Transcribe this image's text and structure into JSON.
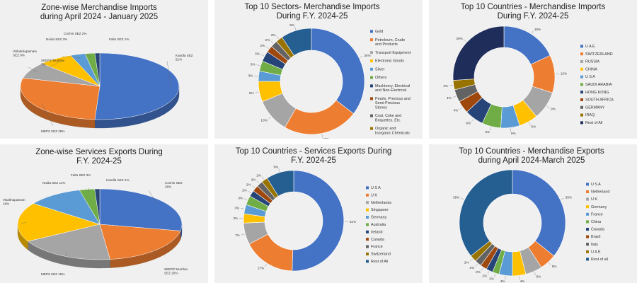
{
  "colors": {
    "palette": [
      "#4472c4",
      "#ed7d31",
      "#a5a5a5",
      "#ffc000",
      "#5b9bd5",
      "#70ad47",
      "#264478",
      "#9e480e",
      "#636363",
      "#997300",
      "#255e91"
    ],
    "panel_bg": "#f0f0f0",
    "rest_dark": "#1f2d5a"
  },
  "chart_data": [
    {
      "type": "pie",
      "title_lines": [
        "Zone-wise Merchandise Imports",
        "during April 2024 - January 2025"
      ],
      "categories": [
        "Kandla SEZ",
        "MEPZ SEZ",
        "Vishakhapatnam SEZ",
        "SEEPZ Mumbai",
        "Noida SEZ",
        "Cochin SEZ",
        "Falta SEZ"
      ],
      "values": [
        51,
        28,
        8,
        7,
        3,
        2,
        1
      ],
      "labels": [
        [
          "Kandla SEZ",
          "51%"
        ],
        [
          "MEPZ SEZ 28%"
        ],
        [
          "Vishakhapatnam",
          "SEZ 8%"
        ],
        [
          "SEEPZ Mumbai",
          "7%"
        ],
        [
          "Noida SEZ 3%"
        ],
        [
          "Cochin SEZ 2%"
        ],
        [
          "Falta SEZ 1%"
        ]
      ],
      "colors": [
        "#4472c4",
        "#ed7d31",
        "#a5a5a5",
        "#ffc000",
        "#5b9bd5",
        "#70ad47",
        "#264478"
      ],
      "style": "3d"
    },
    {
      "type": "pie",
      "title_lines": [
        "Top 10 Sectors- Merchandise Imports",
        "During F.Y. 2024-25"
      ],
      "categories": [
        "Gold",
        "Petroleum, Crude and Products",
        "Transport Equipment",
        "Electronic Goods",
        "Silver",
        "Others",
        "Machinery, Electrical and Non-Electrical",
        "Pearls, Precious and Semi-Precious Stones",
        "Coal, Coke and Briquettes, Etc.",
        "Organic and Inorganic Chemicals",
        "Rest of All"
      ],
      "legend_lines": [
        [
          "Gold"
        ],
        [
          "Petroleum, Crude",
          "and Products"
        ],
        [
          "Transport Equipment"
        ],
        [
          "Electronic Goods"
        ],
        [
          "Silver"
        ],
        [
          "Others"
        ],
        [
          "Machinery, Electrical",
          "and Non-Electrical"
        ],
        [
          "Pearls, Precious and",
          "Semi-Precious",
          "Stones"
        ],
        [
          "Coal, Coke and",
          "Briquettes, Etc."
        ],
        [
          "Organic and",
          "Inorganic Chemicals"
        ],
        [
          "Rest of All"
        ]
      ],
      "values": [
        34,
        22,
        10,
        6,
        3,
        3,
        3,
        2,
        2,
        2,
        9
      ],
      "labels": [
        "34%",
        "22%",
        "10%",
        "6%",
        "3%",
        "3%",
        "3%",
        "2%",
        "2%",
        "2%",
        "9%"
      ],
      "colors": [
        "#4472c4",
        "#ed7d31",
        "#a5a5a5",
        "#ffc000",
        "#5b9bd5",
        "#70ad47",
        "#264478",
        "#9e480e",
        "#636363",
        "#997300",
        "#255e91"
      ],
      "style": "donut"
    },
    {
      "type": "pie",
      "title_lines": [
        "Top 10 Countries - Merchandise Imports",
        "During F.Y. 2024-25"
      ],
      "categories": [
        "U A E",
        "SWITZERLAND",
        "RUSSIA",
        "CHINA",
        "U S A",
        "SAUDI ARABIA",
        "HONG KONG",
        "SOUTH AFRICA",
        "GERMANY",
        "IRAQ",
        "Rest of All"
      ],
      "values": [
        18,
        12,
        9,
        6,
        6,
        6,
        6,
        4,
        4,
        3,
        26
      ],
      "labels": [
        "18%",
        "12%",
        "9%",
        "6%",
        "6%",
        "6%",
        "6%",
        "4%",
        "4%",
        "3%",
        "26%"
      ],
      "colors": [
        "#4472c4",
        "#ed7d31",
        "#a5a5a5",
        "#ffc000",
        "#5b9bd5",
        "#70ad47",
        "#264478",
        "#9e480e",
        "#636363",
        "#997300",
        "#1f2d5a"
      ],
      "style": "donut"
    },
    {
      "type": "pie",
      "title_lines": [
        "Zone-wise Services Exports During",
        "F.Y. 2024-25"
      ],
      "categories": [
        "Cochin SEZ",
        "SEEPZ Mumbai SEZ",
        "MEPZ SEZ",
        "Visakhapatnam",
        "Noida SEZ",
        "Falta SEZ",
        "Kandla SEZ"
      ],
      "values": [
        28,
        20,
        19,
        18,
        11,
        3,
        1
      ],
      "labels": [
        [
          "Cochin SEZ",
          "28%"
        ],
        [
          "SEEPZ Mumbai",
          "SEZ 20%"
        ],
        [
          "MEPZ SEZ 19%"
        ],
        [
          "Visakhapatnam",
          "18%"
        ],
        [
          "Noida SEZ 11%"
        ],
        [
          "Falta SEZ 3%"
        ],
        [
          "Kandla SEZ 1%"
        ]
      ],
      "colors": [
        "#4472c4",
        "#ed7d31",
        "#a5a5a5",
        "#ffc000",
        "#5b9bd5",
        "#70ad47",
        "#264478"
      ],
      "style": "3d"
    },
    {
      "type": "pie",
      "title_lines": [
        "Top 10 Countries - Services Exports During",
        "F.Y. 2024-25"
      ],
      "categories": [
        "U S A",
        "U K",
        "Netherlands",
        "Singapore",
        "Germany",
        "Australia",
        "Ireland",
        "Canada",
        "France",
        "Switzerland",
        "Rest of All"
      ],
      "values": [
        51,
        17,
        7,
        3,
        3,
        3,
        2,
        2,
        2,
        2,
        9
      ],
      "labels": [
        "51%",
        "17%",
        "7%",
        "3%",
        "3%",
        "3%",
        "2%",
        "2%",
        "2%",
        "2%",
        "9%"
      ],
      "colors": [
        "#4472c4",
        "#ed7d31",
        "#a5a5a5",
        "#ffc000",
        "#5b9bd5",
        "#70ad47",
        "#264478",
        "#9e480e",
        "#636363",
        "#997300",
        "#255e91"
      ],
      "style": "donut"
    },
    {
      "type": "pie",
      "title_lines": [
        "Top 10 Countries - Merchandise Exports",
        "during April 2024-March 2025"
      ],
      "categories": [
        "U S A",
        "Netherland",
        "U K",
        "Germany",
        "France",
        "China",
        "Canada",
        "Brazil",
        "Italy",
        "U A E",
        "Rest of all"
      ],
      "values": [
        35,
        5,
        5,
        4,
        4,
        2,
        2,
        2,
        2,
        2,
        35
      ],
      "labels": [
        "35%",
        "5%",
        "5%",
        "4%",
        "4%",
        "2%",
        "2%",
        "2%",
        "2%",
        "2%",
        "35%"
      ],
      "colors": [
        "#4472c4",
        "#ed7d31",
        "#a5a5a5",
        "#ffc000",
        "#5b9bd5",
        "#70ad47",
        "#264478",
        "#9e480e",
        "#636363",
        "#997300",
        "#255e91"
      ],
      "style": "donut"
    }
  ]
}
